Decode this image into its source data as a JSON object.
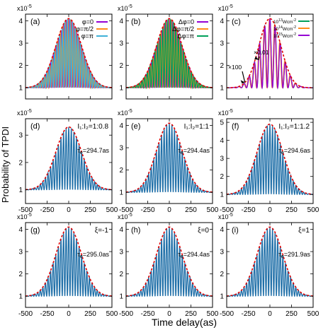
{
  "figure": {
    "xlabel": "Time delay(as)",
    "ylabel": "Probability of TPDI"
  },
  "chart_data": [
    {
      "id": "a",
      "type": "line",
      "panel_label": "(a)",
      "exponent": "x10",
      "exponent_sup": "-5",
      "xlim": [
        -500,
        500
      ],
      "ylim": [
        0.5,
        4.3
      ],
      "xticks": [
        -500,
        -250,
        0,
        250,
        500
      ],
      "yticks": [
        1,
        2,
        3,
        4
      ],
      "show_xtick_labels": false,
      "envelope": {
        "baseline": 1.0,
        "peak": 4.1,
        "tau": 210
      },
      "series": [
        {
          "name": "φ=0",
          "color": "#9400d3",
          "period": 30,
          "phase": 0
        },
        {
          "name": "φ=π/2",
          "color": "#ff8c1a",
          "period": 30,
          "phase": 1.5708
        },
        {
          "name": "φ=π",
          "color": "#3fb1d8",
          "period": 30,
          "phase": 3.1416
        }
      ],
      "legend": [
        {
          "label": "φ=0",
          "color": "#9400d3"
        },
        {
          "label": "φ=π/2",
          "color": "#ff8c1a"
        },
        {
          "label": "φ=π",
          "color": "#3fb1d8"
        }
      ]
    },
    {
      "id": "b",
      "type": "line",
      "panel_label": "(b)",
      "exponent": "x10",
      "exponent_sup": "-5",
      "xlim": [
        -500,
        500
      ],
      "ylim": [
        0.5,
        4.3
      ],
      "xticks": [
        -500,
        -250,
        0,
        250,
        500
      ],
      "yticks": [
        1,
        2,
        3,
        4
      ],
      "show_xtick_labels": false,
      "envelope": {
        "baseline": 1.0,
        "peak": 4.1,
        "tau": 210
      },
      "series": [
        {
          "name": "Δφ=0",
          "color": "#9400d3",
          "period": 30,
          "phase": 0
        },
        {
          "name": "Δφ=π/2",
          "color": "#ff8c1a",
          "period": 30,
          "phase": 1.5708
        },
        {
          "name": "Δφ=π",
          "color": "#00a05a",
          "period": 30,
          "phase": 3.1416
        }
      ],
      "legend": [
        {
          "label": "Δφ=0",
          "color": "#9400d3"
        },
        {
          "label": "Δφ=π/2",
          "color": "#ff8c1a"
        },
        {
          "label": "Δφ=π",
          "color": "#00a05a"
        }
      ]
    },
    {
      "id": "c",
      "type": "line",
      "panel_label": "(c)",
      "exponent": "x10",
      "exponent_sup": "-5",
      "xlim": [
        -500,
        500
      ],
      "ylim": [
        0.5,
        4.3
      ],
      "xticks": [
        -500,
        -250,
        0,
        250,
        500
      ],
      "yticks": [
        1,
        2,
        3,
        4
      ],
      "show_xtick_labels": false,
      "envelope": {
        "baseline": 1.0,
        "peak": 4.1,
        "tau": 180
      },
      "series": [
        {
          "name": "10^13 Wcm^-2",
          "color": "#00a05a",
          "period": 60,
          "phase": 0
        },
        {
          "name": "10^14 Wcm^-2",
          "color": "#ff8c1a",
          "period": 60,
          "phase": 0.5
        },
        {
          "name": "10^15 Wcm^-2",
          "color": "#9400d3",
          "period": 60,
          "phase": 0
        }
      ],
      "legend": [
        {
          "base": "10",
          "sup": "13",
          "unit": "Wcm",
          "usup": "-2",
          "color": "#00a05a"
        },
        {
          "base": "10",
          "sup": "14",
          "unit": "Wcm",
          "usup": "-2",
          "color": "#ff8c1a"
        },
        {
          "base": "10",
          "sup": "15",
          "unit": "Wcm",
          "usup": "-2",
          "color": "#9400d3"
        }
      ],
      "annotations": [
        "×0.01",
        "×100"
      ]
    },
    {
      "id": "d",
      "type": "line",
      "panel_label": "(d)",
      "exponent": "x10",
      "exponent_sup": "-5",
      "xlim": [
        -500,
        500
      ],
      "ylim": [
        0.5,
        3.6
      ],
      "xticks": [
        -500,
        -250,
        0,
        250,
        500
      ],
      "yticks": [
        1,
        2,
        3
      ],
      "show_xtick_labels": true,
      "envelope": {
        "baseline": 1.0,
        "peak": 3.3,
        "tau": 210
      },
      "series": [
        {
          "color": "#1f6fa8",
          "period": 30,
          "phase": 0
        }
      ],
      "header_text": "I₁:I₂=1:0.8",
      "tau_e": "294.7as"
    },
    {
      "id": "e",
      "type": "line",
      "panel_label": "(e)",
      "exponent": "x10",
      "exponent_sup": "-5",
      "xlim": [
        -500,
        500
      ],
      "ylim": [
        0.5,
        4.3
      ],
      "xticks": [
        -500,
        -250,
        0,
        250,
        500
      ],
      "yticks": [
        1,
        2,
        3,
        4
      ],
      "show_xtick_labels": true,
      "envelope": {
        "baseline": 1.0,
        "peak": 4.1,
        "tau": 210
      },
      "series": [
        {
          "color": "#1f6fa8",
          "period": 30,
          "phase": 0
        }
      ],
      "header_text": "I₁:I₂=1:1",
      "tau_e": "294.4as"
    },
    {
      "id": "f",
      "type": "line",
      "panel_label": "(f)",
      "exponent": "x10",
      "exponent_sup": "-5",
      "xlim": [
        -500,
        500
      ],
      "ylim": [
        0.5,
        5.2
      ],
      "xticks": [
        -500,
        -250,
        0,
        250,
        500
      ],
      "yticks": [
        1,
        2,
        3,
        4,
        5
      ],
      "show_xtick_labels": true,
      "envelope": {
        "baseline": 1.0,
        "peak": 4.9,
        "tau": 210
      },
      "series": [
        {
          "color": "#1f6fa8",
          "period": 30,
          "phase": 0
        }
      ],
      "header_text": "I₁:I₂=1:1.2",
      "tau_e": "294.6as"
    },
    {
      "id": "g",
      "type": "line",
      "panel_label": "(g)",
      "exponent": "x10",
      "exponent_sup": "-5",
      "xlim": [
        -500,
        500
      ],
      "ylim": [
        0.5,
        4.3
      ],
      "xticks": [
        -500,
        -250,
        0,
        250,
        500
      ],
      "yticks": [
        1,
        2,
        3,
        4
      ],
      "show_xtick_labels": true,
      "envelope": {
        "baseline": 1.0,
        "peak": 4.1,
        "tau": 210
      },
      "series": [
        {
          "color": "#1f6fa8",
          "period": 30,
          "phase": 0
        }
      ],
      "header_text": "ξ=-1",
      "tau_e": "295.0as"
    },
    {
      "id": "h",
      "type": "line",
      "panel_label": "(h)",
      "exponent": "x10",
      "exponent_sup": "-5",
      "xlim": [
        -500,
        500
      ],
      "ylim": [
        0.5,
        4.3
      ],
      "xticks": [
        -500,
        -250,
        0,
        250,
        500
      ],
      "yticks": [
        1,
        2,
        3,
        4
      ],
      "show_xtick_labels": true,
      "envelope": {
        "baseline": 1.0,
        "peak": 4.1,
        "tau": 210
      },
      "series": [
        {
          "color": "#1f6fa8",
          "period": 30,
          "phase": 0
        }
      ],
      "header_text": "ξ=0",
      "tau_e": "294.4as"
    },
    {
      "id": "i",
      "type": "line",
      "panel_label": "(i)",
      "exponent": "x10",
      "exponent_sup": "-5",
      "xlim": [
        -500,
        500
      ],
      "ylim": [
        0.5,
        4.3
      ],
      "xticks": [
        -500,
        -250,
        0,
        250,
        500
      ],
      "yticks": [
        1,
        2,
        3,
        4
      ],
      "show_xtick_labels": true,
      "envelope": {
        "baseline": 1.0,
        "peak": 4.1,
        "tau": 210
      },
      "series": [
        {
          "color": "#1f6fa8",
          "period": 30,
          "phase": 0
        }
      ],
      "header_text": "ξ=1",
      "tau_e": "291.9as"
    }
  ]
}
